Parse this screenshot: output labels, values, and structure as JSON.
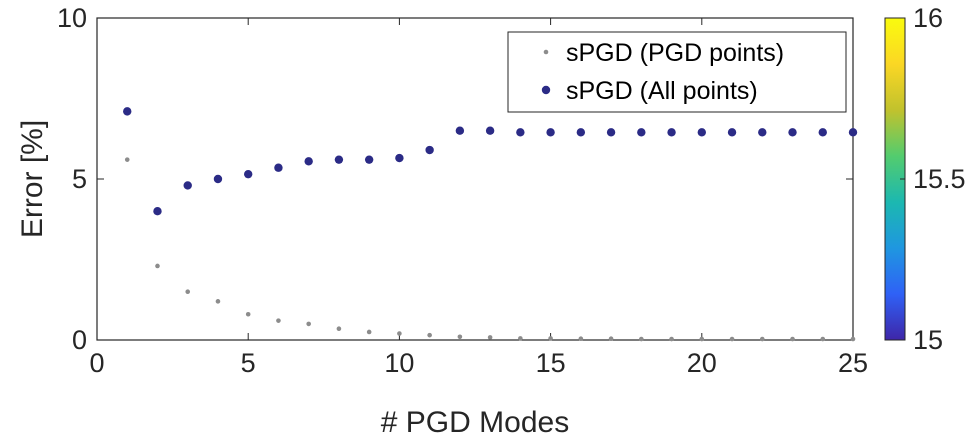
{
  "chart_data": {
    "type": "scatter",
    "title": "",
    "xlabel": "# PGD Modes",
    "ylabel": "Error [%]",
    "xlim": [
      0,
      25
    ],
    "ylim": [
      0,
      10
    ],
    "xticks": [
      0,
      5,
      10,
      15,
      20,
      25
    ],
    "yticks": [
      0,
      5,
      10
    ],
    "grid": false,
    "legend_position": "top-right",
    "series": [
      {
        "name": "sPGD (PGD points)",
        "marker": "small-dot",
        "color": "#8c8c8c",
        "x": [
          1,
          2,
          3,
          4,
          5,
          6,
          7,
          8,
          9,
          10,
          11,
          12,
          13,
          14,
          15,
          16,
          17,
          18,
          19,
          20,
          21,
          22,
          23,
          24,
          25
        ],
        "y": [
          5.6,
          2.3,
          1.5,
          1.2,
          0.8,
          0.6,
          0.5,
          0.35,
          0.25,
          0.2,
          0.15,
          0.1,
          0.08,
          0.05,
          0.05,
          0.04,
          0.04,
          0.03,
          0.03,
          0.03,
          0.03,
          0.03,
          0.03,
          0.03,
          0.03
        ]
      },
      {
        "name": "sPGD (All points)",
        "marker": "dot",
        "color": "#2b2b86",
        "x": [
          1,
          2,
          3,
          4,
          5,
          6,
          7,
          8,
          9,
          10,
          11,
          12,
          13,
          14,
          15,
          16,
          17,
          18,
          19,
          20,
          21,
          22,
          23,
          24,
          25
        ],
        "y": [
          7.1,
          4.0,
          4.8,
          5.0,
          5.15,
          5.35,
          5.55,
          5.6,
          5.6,
          5.65,
          5.9,
          6.5,
          6.5,
          6.45,
          6.45,
          6.45,
          6.45,
          6.45,
          6.45,
          6.45,
          6.45,
          6.45,
          6.45,
          6.45,
          6.45
        ]
      }
    ],
    "colorbar": {
      "range": [
        15,
        16
      ],
      "ticks": [
        "15",
        "15.5",
        "16"
      ],
      "colormap": [
        "#3e26a8",
        "#2f61f6",
        "#1f97e0",
        "#1cb8b0",
        "#53cc6e",
        "#c1c22d",
        "#fbd724",
        "#f9fb0e"
      ]
    }
  }
}
